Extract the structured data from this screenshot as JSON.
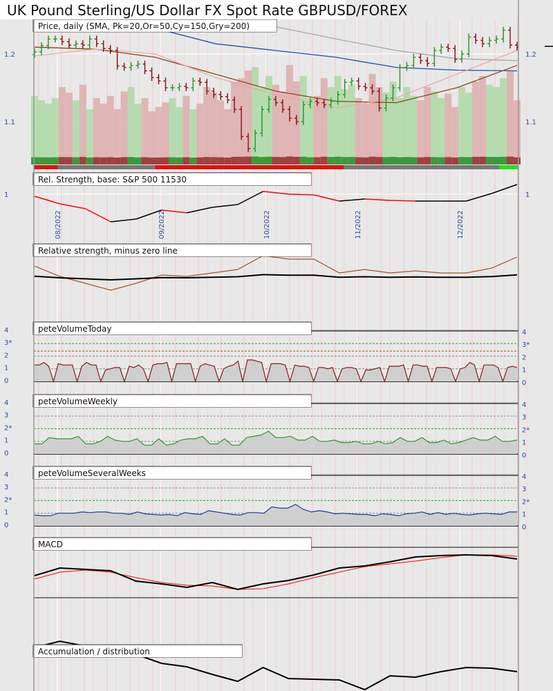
{
  "title": "UK Pound Sterling/US Dollar FX Spot Rate GBPUSD/FOREX",
  "colors": {
    "up": "#2a9a2a",
    "down": "#8b1a1a",
    "sma20": "#e8a8a8",
    "sma50": "#8b4513",
    "sma50_late": "#ff8c1a",
    "sma150": "#1f4fa8",
    "sma200": "#a8a8a8",
    "axis": "#2a4fa0",
    "macd": "#000000",
    "signal": "#ff0000",
    "vol_today": "#8b1a1a",
    "vol_weekly": "#2a9a2a",
    "vol_several": "#1f3c99"
  },
  "date_labels": [
    "08/2022",
    "09/2022",
    "10/2022",
    "11/2022",
    "12/2022"
  ],
  "chart_data": [
    {
      "type": "candlestick",
      "title": "Price, daily (SMA, Pk=20,Or=50,Cy=150,Gry=200)",
      "y_ticks": [
        "1.1",
        "1.2"
      ],
      "ylim": [
        1.04,
        1.27
      ],
      "close": [
        1.203,
        1.212,
        1.222,
        1.222,
        1.218,
        1.213,
        1.215,
        1.213,
        1.222,
        1.215,
        1.208,
        1.205,
        1.182,
        1.18,
        1.183,
        1.185,
        1.175,
        1.165,
        1.16,
        1.15,
        1.15,
        1.152,
        1.15,
        1.16,
        1.158,
        1.145,
        1.14,
        1.137,
        1.132,
        1.118,
        1.078,
        1.06,
        1.083,
        1.118,
        1.133,
        1.128,
        1.118,
        1.105,
        1.1,
        1.125,
        1.13,
        1.128,
        1.125,
        1.13,
        1.14,
        1.158,
        1.16,
        1.152,
        1.15,
        1.145,
        1.12,
        1.135,
        1.15,
        1.18,
        1.183,
        1.195,
        1.19,
        1.186,
        1.205,
        1.21,
        1.208,
        1.192,
        1.2,
        1.225,
        1.22,
        1.215,
        1.22,
        1.222,
        1.235,
        1.213,
        1.21
      ],
      "volume": [
        0.62,
        0.58,
        0.55,
        0.6,
        0.7,
        0.65,
        0.58,
        0.72,
        0.5,
        0.6,
        0.55,
        0.62,
        0.5,
        0.66,
        0.7,
        0.55,
        0.6,
        0.48,
        0.52,
        0.56,
        0.6,
        0.52,
        0.62,
        0.5,
        0.55,
        0.7,
        0.65,
        0.58,
        0.5,
        0.75,
        0.78,
        0.85,
        0.88,
        0.7,
        0.8,
        0.72,
        0.66,
        0.9,
        0.75,
        0.8,
        0.6,
        0.62,
        0.78,
        0.7,
        0.8,
        0.68,
        0.72,
        0.6,
        0.55,
        0.82,
        0.7,
        0.65,
        0.75,
        0.6,
        0.7,
        0.62,
        0.58,
        0.7,
        0.66,
        0.6,
        0.64,
        0.52,
        0.7,
        0.65,
        0.75,
        0.8,
        0.72,
        0.7,
        0.78,
        0.85,
        0.58
      ],
      "sma20": [
        1.197,
        1.207,
        1.2,
        1.165,
        1.14,
        1.12,
        1.135,
        1.17,
        1.205
      ],
      "sma50": [
        1.21,
        1.207,
        1.195,
        1.17,
        1.145,
        1.13,
        1.128,
        1.15,
        1.183
      ],
      "sma150": [
        1.27,
        1.255,
        1.238,
        1.215,
        1.205,
        1.195,
        1.18,
        1.176,
        1.175
      ],
      "sma200": [
        1.29,
        1.28,
        1.268,
        1.255,
        1.24,
        1.222,
        1.205,
        1.193,
        1.19
      ],
      "trend_bar": [
        {
          "state": "down",
          "from": 0,
          "to": 0.05
        },
        {
          "state": "neutral",
          "from": 0.05,
          "to": 0.25
        },
        {
          "state": "down",
          "from": 0.25,
          "to": 0.64
        },
        {
          "state": "neutral",
          "from": 0.64,
          "to": 0.96
        },
        {
          "state": "up",
          "from": 0.96,
          "to": 1.0
        }
      ]
    },
    {
      "type": "line",
      "title": "Rel. Strength, base: S&P 500 11530",
      "y_ticks": [
        "1"
      ],
      "values": [
        0.997,
        0.986,
        0.979,
        0.96,
        0.964,
        0.977,
        0.973,
        0.981,
        0.985,
        1.004,
        1.0,
        0.999,
        0.99,
        0.993,
        0.991,
        0.99,
        0.99,
        0.99,
        1.001,
        1.014
      ]
    },
    {
      "type": "line",
      "title": "Relative strength, minus zero line",
      "values": [
        0.015,
        0.0,
        -0.01,
        -0.02,
        -0.01,
        0.002,
        0.0,
        0.005,
        0.01,
        0.03,
        0.025,
        0.025,
        0.005,
        0.01,
        0.005,
        0.008,
        0.005,
        0.005,
        0.012,
        0.028
      ]
    },
    {
      "type": "area",
      "title": "peteVolumeToday",
      "y_ticks": [
        "0",
        "1",
        "2",
        "3*",
        "4"
      ],
      "ylim": [
        0,
        4
      ],
      "values": [
        1.3,
        1.3,
        1.5,
        1.2,
        0,
        1.4,
        1.3,
        1.3,
        1.3,
        0,
        1.2,
        1.5,
        1.3,
        1.3,
        0,
        0.9,
        1.0,
        1.1,
        1.1,
        0,
        1.2,
        1.1,
        1.3,
        1.0,
        0,
        1.3,
        1.4,
        1.4,
        1.5,
        0,
        1.4,
        1.4,
        1.4,
        1.4,
        0,
        1.2,
        1.4,
        1.3,
        1.2,
        0,
        1.0,
        1.2,
        1.3,
        1.6,
        0,
        1.7,
        1.7,
        1.6,
        1.5,
        0,
        1.4,
        1.4,
        1.4,
        1.3,
        0,
        1.3,
        1.2,
        1.2,
        1.1,
        0,
        1.1,
        1.1,
        1.0,
        1.1,
        0,
        1.0,
        1.1,
        1.1,
        1.0,
        0,
        0.9,
        0.9,
        1.0,
        1.1,
        0,
        1.2,
        1.2,
        1.2,
        1.3,
        0,
        1.3,
        1.3,
        1.2,
        1.2,
        0,
        1.1,
        1.1,
        1.1,
        1.0,
        0,
        1.0,
        1.1,
        1.5,
        1.3,
        0,
        1.3,
        1.3,
        1.3,
        1.1,
        0,
        1.1,
        1.2,
        1.1
      ]
    },
    {
      "type": "area",
      "title": "peteVolumeWeekly",
      "y_ticks": [
        "0",
        "1",
        "2*",
        "3",
        "4"
      ],
      "ylim": [
        0,
        4
      ],
      "values": [
        0.8,
        0.8,
        1.3,
        1.2,
        1.2,
        1.2,
        1.4,
        0.8,
        0.8,
        1.0,
        1.4,
        1.1,
        1.0,
        1.0,
        1.2,
        0.7,
        0.7,
        1.2,
        0.7,
        0.8,
        1.1,
        1.2,
        1.2,
        1.4,
        0.8,
        0.8,
        1.2,
        0.7,
        0.7,
        1.3,
        1.4,
        1.5,
        1.8,
        1.3,
        1.3,
        1.4,
        1.1,
        1.1,
        1.4,
        1.0,
        1.0,
        1.1,
        0.9,
        0.9,
        1.0,
        0.8,
        0.8,
        1.0,
        0.8,
        0.9,
        1.3,
        1.0,
        1.0,
        1.3,
        0.9,
        0.9,
        1.1,
        0.8,
        0.9,
        1.1,
        1.3,
        1.1,
        1.1,
        1.4,
        1.0,
        1.0,
        1.1
      ]
    },
    {
      "type": "area",
      "title": "peteVolumeSeveralWeeks",
      "y_ticks": [
        "0",
        "1",
        "2*",
        "3",
        "4"
      ],
      "ylim": [
        0,
        4
      ],
      "values": [
        0.85,
        0.8,
        0.8,
        1.0,
        1.0,
        1.0,
        1.1,
        1.05,
        1.1,
        1.1,
        1.0,
        1.0,
        0.9,
        1.1,
        0.95,
        0.9,
        0.85,
        0.9,
        0.8,
        1.05,
        0.95,
        0.9,
        1.2,
        1.1,
        1.0,
        0.9,
        0.85,
        1.05,
        1.05,
        1.0,
        1.5,
        1.4,
        1.4,
        1.7,
        1.3,
        1.1,
        1.2,
        1.1,
        0.95,
        1.0,
        0.95,
        0.9,
        0.9,
        0.8,
        0.95,
        0.9,
        0.8,
        0.95,
        1.0,
        1.1,
        0.9,
        1.05,
        0.9,
        1.0,
        0.9,
        0.85,
        0.95,
        1.0,
        0.95,
        0.9,
        1.1,
        1.1
      ]
    },
    {
      "type": "line",
      "title": "MACD",
      "series": [
        {
          "values": [
            0.32,
            0.43,
            0.41,
            0.39,
            0.24,
            0.2,
            0.15,
            0.22,
            0.12,
            0.2,
            0.25,
            0.33,
            0.43,
            0.46,
            0.52,
            0.59,
            0.61,
            0.62,
            0.61,
            0.56
          ]
        },
        {
          "values": [
            0.27,
            0.37,
            0.4,
            0.37,
            0.29,
            0.22,
            0.18,
            0.17,
            0.12,
            0.13,
            0.2,
            0.29,
            0.37,
            0.45,
            0.49,
            0.53,
            0.58,
            0.62,
            0.62,
            0.6
          ]
        }
      ]
    },
    {
      "type": "line",
      "title": "Accumulation / distribution",
      "values": [
        63,
        72,
        65,
        60,
        53,
        40,
        35,
        24,
        14,
        34,
        18,
        17,
        16,
        2,
        22,
        20,
        28,
        34,
        33,
        28
      ]
    }
  ]
}
